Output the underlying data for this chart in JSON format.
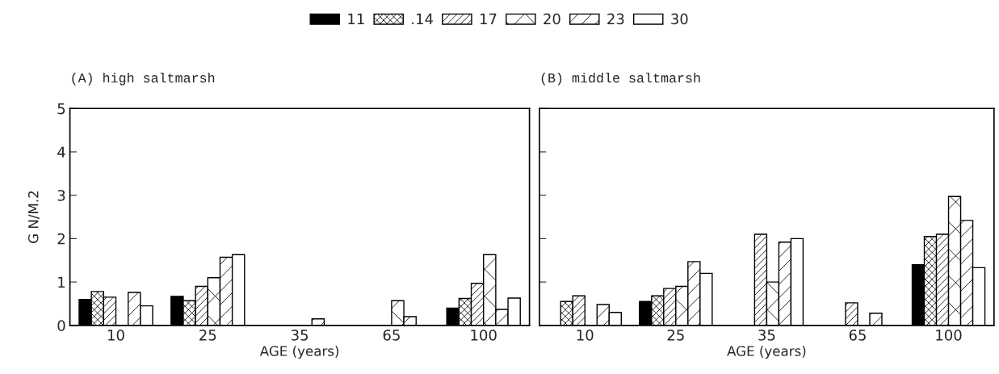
{
  "chart_data": [
    {
      "type": "bar",
      "title": "(A) high saltmarsh",
      "xlabel": "AGE (years)",
      "ylabel": "G N/M.2",
      "categories": [
        "10",
        "25",
        "35",
        "65",
        "100"
      ],
      "ylim": [
        0,
        5
      ],
      "yticks": [
        0,
        1,
        2,
        3,
        4,
        5
      ],
      "grid": false,
      "legend": "top",
      "series": [
        {
          "name": "11",
          "color": "#000000",
          "values": [
            0.6,
            0.67,
            null,
            null,
            0.4
          ]
        },
        {
          "name": ".14",
          "color": "#000000",
          "values": [
            0.78,
            0.57,
            null,
            null,
            0.62
          ]
        },
        {
          "name": "17",
          "color": "#000000",
          "values": [
            0.65,
            0.9,
            null,
            null,
            0.97
          ]
        },
        {
          "name": "20",
          "color": "#000000",
          "values": [
            null,
            1.1,
            null,
            0.57,
            1.63
          ]
        },
        {
          "name": "23",
          "color": "#000000",
          "values": [
            0.76,
            1.57,
            0.15,
            0.2,
            0.37
          ]
        },
        {
          "name": "30",
          "color": "#000000",
          "values": [
            0.45,
            1.63,
            null,
            null,
            0.63
          ]
        }
      ]
    },
    {
      "type": "bar",
      "title": "(B) middle saltmarsh",
      "xlabel": "AGE (years)",
      "categories": [
        "10",
        "25",
        "35",
        "65",
        "100"
      ],
      "ylim": [
        0,
        5
      ],
      "yticks": [
        {
          "value": 0,
          "label": null
        },
        {
          "value": 1,
          "label": null
        },
        {
          "value": 2,
          "label": null
        },
        {
          "value": 3,
          "label": null
        },
        {
          "value": 4,
          "label": null
        },
        {
          "value": 5,
          "label": null
        }
      ],
      "grid": false,
      "tick_labels": "x",
      "series": [
        {
          "name": "11",
          "color": "#000000",
          "values": [
            null,
            0.55,
            null,
            null,
            1.4
          ]
        },
        {
          "name": ".14",
          "color": "#000000",
          "values": [
            0.55,
            0.68,
            null,
            null,
            2.05
          ]
        },
        {
          "name": "17",
          "color": "#000000",
          "values": [
            0.68,
            0.85,
            2.1,
            0.52,
            2.1
          ]
        },
        {
          "name": "20",
          "color": "#000000",
          "values": [
            null,
            0.9,
            1.0,
            null,
            2.97
          ]
        },
        {
          "name": "23",
          "color": "#000000",
          "values": [
            0.48,
            1.47,
            1.92,
            0.28,
            2.42
          ]
        },
        {
          "name": "30",
          "color": "#000000",
          "values": [
            0.3,
            1.2,
            2.0,
            null,
            1.33
          ]
        }
      ]
    }
  ]
}
